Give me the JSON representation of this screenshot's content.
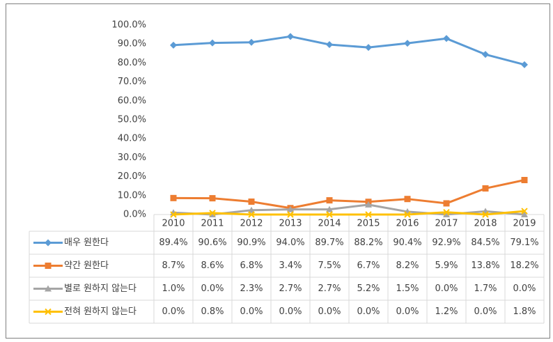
{
  "chart_data": {
    "type": "line",
    "categories": [
      "2010",
      "2011",
      "2012",
      "2013",
      "2014",
      "2015",
      "2016",
      "2017",
      "2018",
      "2019"
    ],
    "series": [
      {
        "name": "매우 원한다",
        "color": "#5b9bd5",
        "marker": "diamond",
        "values": [
          89.4,
          90.6,
          90.9,
          94.0,
          89.7,
          88.2,
          90.4,
          92.9,
          84.5,
          79.1
        ],
        "value_labels": [
          "89.4%",
          "90.6%",
          "90.9%",
          "94.0%",
          "89.7%",
          "88.2%",
          "90.4%",
          "92.9%",
          "84.5%",
          "79.1%"
        ]
      },
      {
        "name": "약간 원한다",
        "color": "#ed7d31",
        "marker": "square",
        "values": [
          8.7,
          8.6,
          6.8,
          3.4,
          7.5,
          6.7,
          8.2,
          5.9,
          13.8,
          18.2
        ],
        "value_labels": [
          "8.7%",
          "8.6%",
          "6.8%",
          "3.4%",
          "7.5%",
          "6.7%",
          "8.2%",
          "5.9%",
          "13.8%",
          "18.2%"
        ]
      },
      {
        "name": "별로 원하지 않는다",
        "color": "#a5a5a5",
        "marker": "triangle",
        "values": [
          1.0,
          0.0,
          2.3,
          2.7,
          2.7,
          5.2,
          1.5,
          0.0,
          1.7,
          0.0
        ],
        "value_labels": [
          "1.0%",
          "0.0%",
          "2.3%",
          "2.7%",
          "2.7%",
          "5.2%",
          "1.5%",
          "0.0%",
          "1.7%",
          "0.0%"
        ]
      },
      {
        "name": "전혀 원하지 않는다",
        "color": "#ffc000",
        "marker": "x",
        "values": [
          0.0,
          0.8,
          0.0,
          0.0,
          0.0,
          0.0,
          0.0,
          1.2,
          0.0,
          1.8
        ],
        "value_labels": [
          "0.0%",
          "0.8%",
          "0.0%",
          "0.0%",
          "0.0%",
          "0.0%",
          "0.0%",
          "1.2%",
          "0.0%",
          "1.8%"
        ]
      }
    ],
    "ylim": [
      0,
      100
    ],
    "yticks": [
      {
        "value": 0,
        "label": "0.0%"
      },
      {
        "value": 10,
        "label": "10.0%"
      },
      {
        "value": 20,
        "label": "20.0%"
      },
      {
        "value": 30,
        "label": "30.0%"
      },
      {
        "value": 40,
        "label": "40.0%"
      },
      {
        "value": 50,
        "label": "50.0%"
      },
      {
        "value": 60,
        "label": "60.0%"
      },
      {
        "value": 70,
        "label": "70.0%"
      },
      {
        "value": 80,
        "label": "80.0%"
      },
      {
        "value": 90,
        "label": "90.0%"
      },
      {
        "value": 100,
        "label": "100.0%"
      }
    ],
    "grid": false
  }
}
